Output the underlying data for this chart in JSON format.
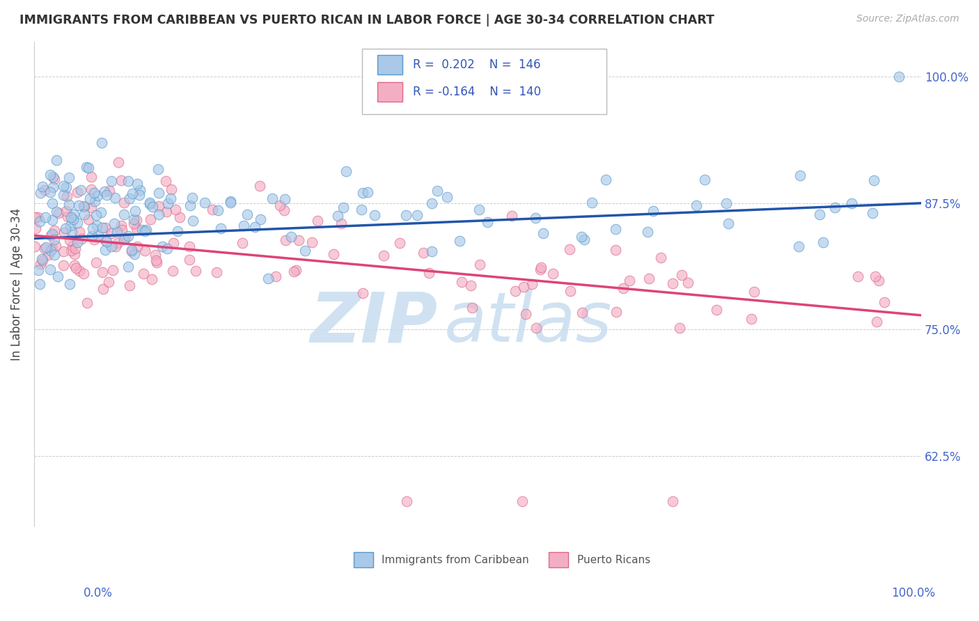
{
  "title": "IMMIGRANTS FROM CARIBBEAN VS PUERTO RICAN IN LABOR FORCE | AGE 30-34 CORRELATION CHART",
  "source": "Source: ZipAtlas.com",
  "ylabel": "In Labor Force | Age 30-34",
  "yticks": [
    0.625,
    0.75,
    0.875,
    1.0
  ],
  "ytick_labels": [
    "62.5%",
    "75.0%",
    "87.5%",
    "100.0%"
  ],
  "xlim": [
    0.0,
    1.0
  ],
  "ylim": [
    0.555,
    1.035
  ],
  "blue_R": 0.202,
  "blue_N": 146,
  "pink_R": -0.164,
  "pink_N": 140,
  "blue_fill": "#aac8e8",
  "pink_fill": "#f4aec4",
  "blue_edge": "#5599cc",
  "pink_edge": "#dd6688",
  "blue_line": "#2255aa",
  "pink_line": "#dd4477",
  "blue_label": "Immigrants from Caribbean",
  "pink_label": "Puerto Ricans",
  "legend_text_color": "#3355bb",
  "watermark_zip_color": "#c8ddf0",
  "watermark_atlas_color": "#c8ddf0",
  "bg_color": "#ffffff",
  "grid_color": "#cccccc",
  "title_color": "#333333",
  "tick_color": "#4466cc",
  "blue_trend_start_y": 0.84,
  "blue_trend_end_y": 0.875,
  "pink_trend_start_y": 0.843,
  "pink_trend_end_y": 0.764
}
